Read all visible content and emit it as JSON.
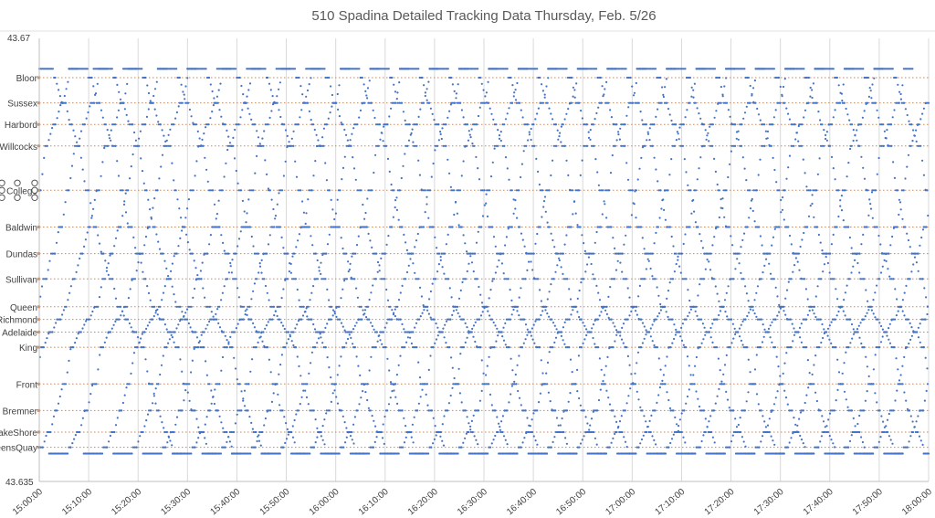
{
  "chart_data": {
    "type": "scatter",
    "title": "510 Spadina Detailed Tracking Data Thursday, Feb. 5/26",
    "xlabel": "",
    "ylabel": "",
    "xlim": [
      "15:00:00",
      "18:00:00"
    ],
    "ylim": [
      43.635,
      43.67
    ],
    "y_tick_labels": {
      "min": "43.635",
      "max": "43.67"
    },
    "x_ticks": [
      "15:00:00",
      "15:10:00",
      "15:20:00",
      "15:30:00",
      "15:40:00",
      "15:50:00",
      "16:00:00",
      "16:10:00",
      "16:20:00",
      "16:30:00",
      "16:40:00",
      "16:50:00",
      "17:00:00",
      "17:10:00",
      "17:20:00",
      "17:30:00",
      "17:40:00",
      "17:50:00",
      "18:00:00"
    ],
    "grid": {
      "vertical": true,
      "horizontal": false
    },
    "stops": [
      {
        "name": "Bloor",
        "lat": 43.6669
      },
      {
        "name": "Sussex",
        "lat": 43.6649
      },
      {
        "name": "Harbord",
        "lat": 43.6632
      },
      {
        "name": "Willcocks",
        "lat": 43.6615
      },
      {
        "name": "College",
        "lat": 43.658
      },
      {
        "name": "Baldwin",
        "lat": 43.6551
      },
      {
        "name": "Dundas",
        "lat": 43.653
      },
      {
        "name": "Sullivan",
        "lat": 43.651
      },
      {
        "name": "Queen",
        "lat": 43.6488
      },
      {
        "name": "Richmond",
        "lat": 43.6478
      },
      {
        "name": "Adelaide",
        "lat": 43.6468
      },
      {
        "name": "King",
        "lat": 43.6456
      },
      {
        "name": "Front",
        "lat": 43.6427
      },
      {
        "name": "Bremner",
        "lat": 43.6406
      },
      {
        "name": "LakeShore",
        "lat": 43.6389
      },
      {
        "name": "QueensQuay",
        "lat": 43.6377
      }
    ],
    "series_color": "#4472C4",
    "stop_line_color": "#ED7D31",
    "grid_color": "#D9D9D9",
    "trips": {
      "southbound": [
        [
          "15:00",
          "15:03",
          "15:27"
        ],
        [
          "15:06",
          "15:10",
          "15:34"
        ],
        [
          "15:11",
          "15:15",
          "15:39"
        ],
        [
          "15:17",
          "15:21",
          "15:45"
        ],
        [
          "15:24",
          "15:28",
          "15:52"
        ],
        [
          "15:30",
          "15:34",
          "15:58"
        ],
        [
          "15:36",
          "15:40",
          "16:04"
        ],
        [
          "15:42",
          "15:46",
          "16:10"
        ],
        [
          "15:48",
          "15:52",
          "16:16"
        ],
        [
          "15:54",
          "15:58",
          "16:22"
        ],
        [
          "16:01",
          "16:05",
          "16:29"
        ],
        [
          "16:07",
          "16:11",
          "16:35"
        ],
        [
          "16:13",
          "16:17",
          "16:41"
        ],
        [
          "16:19",
          "16:23",
          "16:47"
        ],
        [
          "16:25",
          "16:29",
          "16:53"
        ],
        [
          "16:31",
          "16:35",
          "16:59"
        ],
        [
          "16:37",
          "16:41",
          "17:05"
        ],
        [
          "16:43",
          "16:47",
          "17:11"
        ],
        [
          "16:49",
          "16:53",
          "17:17"
        ],
        [
          "16:55",
          "16:59",
          "17:23"
        ],
        [
          "17:01",
          "17:05",
          "17:29"
        ],
        [
          "17:07",
          "17:11",
          "17:35"
        ],
        [
          "17:13",
          "17:17",
          "17:41"
        ],
        [
          "17:19",
          "17:23",
          "17:47"
        ],
        [
          "17:25",
          "17:29",
          "17:53"
        ],
        [
          "17:31",
          "17:35",
          "17:59"
        ],
        [
          "17:37",
          "17:41",
          "18:05"
        ],
        [
          "17:43",
          "17:47",
          "18:11"
        ],
        [
          "17:49",
          "17:53",
          "18:17"
        ]
      ],
      "northbound": [
        [
          "14:38",
          "14:42",
          "15:06"
        ],
        [
          "14:44",
          "14:48",
          "15:12"
        ],
        [
          "14:50",
          "14:54",
          "15:18"
        ],
        [
          "14:56",
          "15:00",
          "15:24"
        ],
        [
          "15:02",
          "15:06",
          "15:30"
        ],
        [
          "15:09",
          "15:13",
          "15:37"
        ],
        [
          "15:15",
          "15:19",
          "15:43"
        ],
        [
          "15:21",
          "15:25",
          "15:49"
        ],
        [
          "15:27",
          "15:31",
          "15:55"
        ],
        [
          "15:33",
          "15:37",
          "16:01"
        ],
        [
          "15:39",
          "15:43",
          "16:07"
        ],
        [
          "15:45",
          "15:49",
          "16:13"
        ],
        [
          "15:51",
          "15:55",
          "16:19"
        ],
        [
          "15:57",
          "16:01",
          "16:25"
        ],
        [
          "16:03",
          "16:07",
          "16:31"
        ],
        [
          "16:09",
          "16:13",
          "16:37"
        ],
        [
          "16:15",
          "16:19",
          "16:43"
        ],
        [
          "16:21",
          "16:25",
          "16:49"
        ],
        [
          "16:27",
          "16:31",
          "16:55"
        ],
        [
          "16:33",
          "16:37",
          "17:01"
        ],
        [
          "16:39",
          "16:43",
          "17:07"
        ],
        [
          "16:45",
          "16:49",
          "17:13"
        ],
        [
          "16:51",
          "16:55",
          "17:19"
        ],
        [
          "16:57",
          "17:01",
          "17:25"
        ],
        [
          "17:03",
          "17:07",
          "17:31"
        ],
        [
          "17:09",
          "17:13",
          "17:37"
        ],
        [
          "17:15",
          "17:19",
          "17:43"
        ],
        [
          "17:21",
          "17:25",
          "17:49"
        ],
        [
          "17:27",
          "17:31",
          "17:55"
        ],
        [
          "17:33",
          "17:37",
          "18:01"
        ],
        [
          "17:39",
          "17:43",
          "18:07"
        ],
        [
          "17:45",
          "17:49",
          "18:13"
        ],
        [
          "17:51",
          "17:55",
          "18:19"
        ]
      ]
    }
  }
}
